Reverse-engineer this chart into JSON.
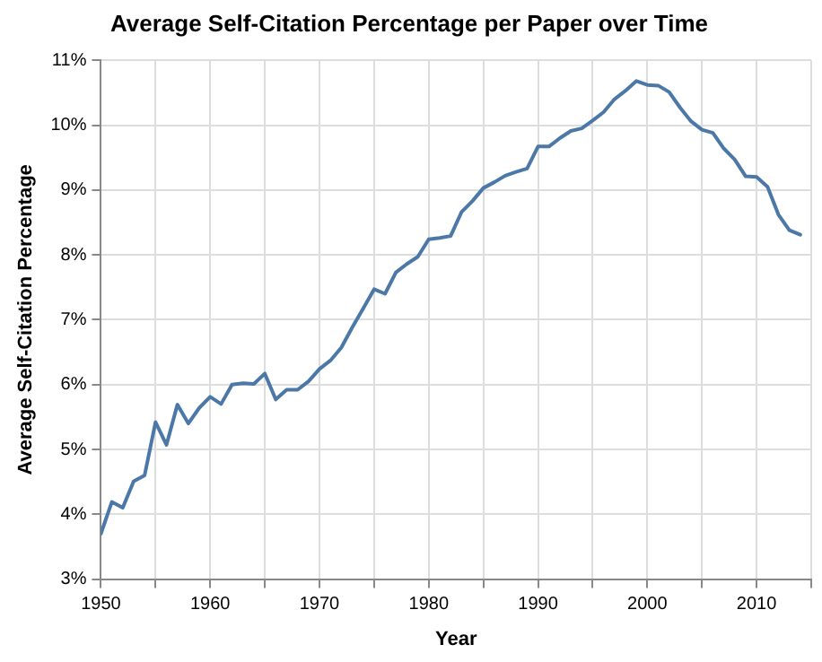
{
  "chart_data": {
    "type": "line",
    "title": "Average Self-Citation Percentage per Paper over Time",
    "xlabel": "Year",
    "ylabel": "Average Self-Citation Percentage",
    "x": [
      1950,
      1951,
      1952,
      1953,
      1954,
      1955,
      1956,
      1957,
      1958,
      1959,
      1960,
      1961,
      1962,
      1963,
      1964,
      1965,
      1966,
      1967,
      1968,
      1969,
      1970,
      1971,
      1972,
      1973,
      1974,
      1975,
      1976,
      1977,
      1978,
      1979,
      1980,
      1981,
      1982,
      1983,
      1984,
      1985,
      1986,
      1987,
      1988,
      1989,
      1990,
      1991,
      1992,
      1993,
      1994,
      1995,
      1996,
      1997,
      1998,
      1999,
      2000,
      2001,
      2002,
      2003,
      2004,
      2005,
      2006,
      2007,
      2008,
      2009,
      2010,
      2011,
      2012,
      2013,
      2014
    ],
    "series": [
      {
        "color": "#4c78a8",
        "values": [
          3.7,
          4.19,
          4.1,
          4.51,
          4.6,
          5.42,
          5.07,
          5.69,
          5.4,
          5.64,
          5.81,
          5.7,
          6.0,
          6.02,
          6.01,
          6.17,
          5.77,
          5.92,
          5.92,
          6.05,
          6.24,
          6.37,
          6.57,
          6.88,
          7.17,
          7.47,
          7.4,
          7.73,
          7.86,
          7.97,
          8.24,
          8.26,
          8.29,
          8.66,
          8.83,
          9.03,
          9.12,
          9.22,
          9.28,
          9.33,
          9.67,
          9.67,
          9.8,
          9.91,
          9.95,
          10.07,
          10.2,
          10.4,
          10.53,
          10.68,
          10.62,
          10.61,
          10.51,
          10.27,
          10.06,
          9.93,
          9.88,
          9.64,
          9.47,
          9.21,
          9.2,
          9.05,
          8.62,
          8.38,
          8.31
        ]
      }
    ],
    "xlim": [
      1950,
      2015
    ],
    "xticks": [
      1950,
      {
        "value": 1955,
        "label": null
      },
      1960,
      {
        "value": 1965,
        "label": null
      },
      1970,
      {
        "value": 1975,
        "label": null
      },
      1980,
      {
        "value": 1985,
        "label": null
      },
      1990,
      {
        "value": 1995,
        "label": null
      },
      2000,
      {
        "value": 2005,
        "label": null
      },
      2010,
      {
        "value": 2015,
        "label": null
      }
    ],
    "ylim": [
      3,
      11
    ],
    "yticks": [
      {
        "value": 3,
        "label": "3%"
      },
      {
        "value": 4,
        "label": "4%"
      },
      {
        "value": 5,
        "label": "5%"
      },
      {
        "value": 6,
        "label": "6%"
      },
      {
        "value": 7,
        "label": "7%"
      },
      {
        "value": 8,
        "label": "8%"
      },
      {
        "value": 9,
        "label": "9%"
      },
      {
        "value": 10,
        "label": "10%"
      },
      {
        "value": 11,
        "label": "11%"
      }
    ],
    "grid": true,
    "legend": false,
    "marker": "none",
    "line_style": "solid"
  }
}
